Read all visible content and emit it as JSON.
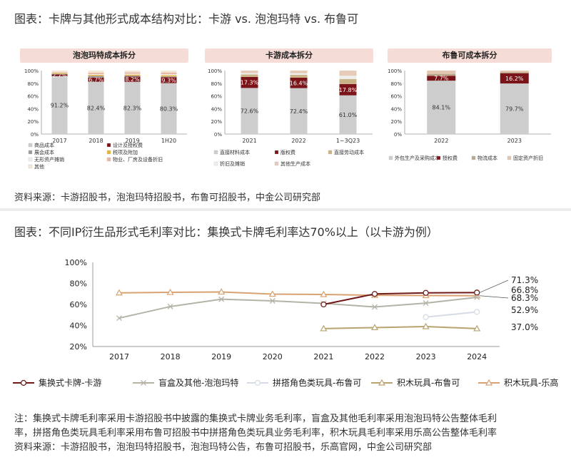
{
  "top": {
    "title": "图表：卡牌与其他形式成本结构对比：卡游 vs. 泡泡玛特 vs. 布鲁可",
    "source": "资料来源：卡游招股书，泡泡玛特招股书，布鲁可招股书，中金公司研究部"
  },
  "bottom": {
    "title": "图表：不同IP衍生品形式毛利率对比：集换式卡牌毛利率达70%以上（以卡游为例）",
    "note_lines": [
      "注：集换式卡牌毛利率采用卡游招股书中披露的集换式卡牌业务毛利率，盲盒及其他毛利率采用泡泡玛特公告整体毛利",
      "率，拼搭角色类玩具毛利率采用布鲁可招股书中拼搭角色类玩具业务毛利率，积木玩具毛利率采用乐高公告整体毛利率",
      "资料来源：卡游招股书，泡泡玛特招股书，泡泡玛特公告，布鲁可招股书，乐高官网，中金公司研究部"
    ]
  },
  "chart_data": [
    {
      "type": "bar",
      "stacked": true,
      "title": "泡泡玛特成本拆分",
      "categories": [
        "2017",
        "2018",
        "2019",
        "1H20"
      ],
      "ylim": [
        0,
        100
      ],
      "yticks": [
        "0%",
        "20%",
        "40%",
        "60%",
        "80%",
        "100%"
      ],
      "series": [
        {
          "name": "商品成本",
          "color": "#cdcdcd",
          "values": [
            91.2,
            82.4,
            82.3,
            80.3
          ],
          "labels": [
            "91.2%",
            "82.4%",
            "82.3%",
            "80.3%"
          ]
        },
        {
          "name": "设计及授权费",
          "color": "#7a1418",
          "values": [
            2.7,
            6.7,
            8.2,
            9.3
          ],
          "labels": [
            "2.7%",
            "6.7%",
            "8.2%",
            "9.3%"
          ]
        },
        {
          "name": "展会成本",
          "color": "#9a9a9a",
          "values": [
            1,
            2.5,
            1.5,
            1.2
          ]
        },
        {
          "name": "税项及附加",
          "color": "#e7b43a",
          "values": [
            1.3,
            1.5,
            1.6,
            1.8
          ]
        },
        {
          "name": "无形资产摊销",
          "color": "#efefef",
          "values": [
            0.8,
            1.2,
            1.3,
            1.6
          ]
        },
        {
          "name": "物业、厂房及设备折旧",
          "color": "#e8b8a8",
          "values": [
            1,
            2.5,
            2.3,
            2.8
          ]
        },
        {
          "name": "其他",
          "color": "#f3e8d4",
          "values": [
            2,
            3.2,
            2.8,
            3
          ]
        }
      ],
      "legend_columns": 2
    },
    {
      "type": "bar",
      "stacked": true,
      "title": "卡游成本拆分",
      "categories": [
        "2021",
        "2022",
        "1~3Q23"
      ],
      "ylim": [
        0,
        100
      ],
      "yticks": [
        "0%",
        "20%",
        "40%",
        "60%",
        "80%",
        "100%"
      ],
      "series": [
        {
          "name": "直接材料成本",
          "color": "#cdcdcd",
          "values": [
            72.6,
            72.4,
            61.0
          ],
          "labels": [
            "72.6%",
            "72.4%",
            "61.0%"
          ]
        },
        {
          "name": "版权费",
          "color": "#7a1418",
          "values": [
            17.3,
            16.4,
            17.8
          ],
          "labels": [
            "17.3%",
            "16.4%",
            "17.8%"
          ]
        },
        {
          "name": "直接劳动成本",
          "color": "#c9b48a",
          "values": [
            4,
            4.5,
            8
          ]
        },
        {
          "name": "折旧及摊销",
          "color": "#efefef",
          "values": [
            2,
            2.5,
            5
          ]
        },
        {
          "name": "其他生产成本",
          "color": "#e6cbb8",
          "values": [
            4.1,
            4.2,
            8.2
          ]
        }
      ],
      "legend_columns": 3
    },
    {
      "type": "bar",
      "stacked": true,
      "title": "布鲁可成本拆分",
      "categories": [
        "2022",
        "2023"
      ],
      "ylim": [
        0,
        100
      ],
      "yticks": [
        "0%",
        "20%",
        "40%",
        "60%",
        "80%",
        "100%"
      ],
      "series": [
        {
          "name": "外包生产及采购成本",
          "color": "#cdcdcd",
          "values": [
            84.1,
            79.7
          ],
          "labels": [
            "84.1%",
            "79.7%"
          ]
        },
        {
          "name": "授权费",
          "color": "#7a1418",
          "values": [
            7.7,
            16.2
          ],
          "labels": [
            "7.7%",
            "16.2%"
          ]
        },
        {
          "name": "物流成本",
          "color": "#b9a88a",
          "values": [
            3,
            1.5
          ]
        },
        {
          "name": "固定资产折旧",
          "color": "#e2c6b0",
          "values": [
            5.2,
            2.6
          ]
        }
      ],
      "legend_columns": 4
    },
    {
      "type": "line",
      "x": [
        "2017",
        "2018",
        "2019",
        "2020",
        "2021",
        "2022",
        "2023",
        "2024"
      ],
      "ylim": [
        20,
        100
      ],
      "yticks": [
        "20%",
        "40%",
        "60%",
        "80%",
        "100%"
      ],
      "series": [
        {
          "name": "集换式卡牌-卡游",
          "color": "#6e1a1a",
          "marker": "circle",
          "values": [
            null,
            null,
            null,
            null,
            60,
            70,
            71,
            71.3
          ]
        },
        {
          "name": "盲盒及其他-泡泡玛特",
          "color": "#b5b3a6",
          "marker": "x",
          "values": [
            47,
            58,
            65,
            63.4,
            61,
            57.6,
            61.3,
            66.8
          ]
        },
        {
          "name": "拼搭角色类玩具-布鲁可",
          "color": "#d6dbe6",
          "marker": "circle",
          "values": [
            null,
            null,
            null,
            null,
            null,
            null,
            48,
            52.9
          ]
        },
        {
          "name": "积木玩具-布鲁可",
          "color": "#b8a46e",
          "marker": "triangle",
          "values": [
            null,
            null,
            null,
            null,
            37,
            38,
            39,
            37.0
          ]
        },
        {
          "name": "积木玩具-乐高",
          "color": "#d9a272",
          "marker": "triangle",
          "values": [
            71,
            71.5,
            71.9,
            69.8,
            69.5,
            68.7,
            68.5,
            68.3
          ]
        }
      ],
      "end_labels": [
        "71.3%",
        "66.8%",
        "52.9%",
        "37.0%",
        "68.3%"
      ]
    }
  ]
}
